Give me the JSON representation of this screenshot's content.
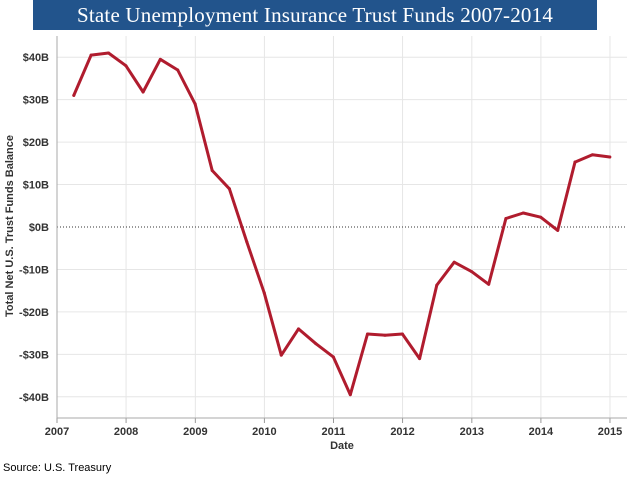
{
  "chart_data": {
    "type": "line",
    "title": "State Unemployment Insurance Trust Funds 2007-2014",
    "xlabel": "Date",
    "ylabel": "Total Net U.S. Trust Funds Balance",
    "source": "Source: U.S. Treasury",
    "xlim": [
      "2007-01-01",
      "2015-04-01"
    ],
    "ylim": [
      -45,
      45
    ],
    "y_ticks": [
      {
        "value": 40,
        "label": "$40B"
      },
      {
        "value": 30,
        "label": "$30B"
      },
      {
        "value": 20,
        "label": "$20B"
      },
      {
        "value": 10,
        "label": "$10B"
      },
      {
        "value": 0,
        "label": "$0B"
      },
      {
        "value": -10,
        "label": "-$10B"
      },
      {
        "value": -20,
        "label": "-$20B"
      },
      {
        "value": -30,
        "label": "-$30B"
      },
      {
        "value": -40,
        "label": "-$40B"
      }
    ],
    "x_ticks": [
      {
        "value": "2007-01-01",
        "label": "2007"
      },
      {
        "value": "2008-01-01",
        "label": "2008"
      },
      {
        "value": "2009-01-01",
        "label": "2009"
      },
      {
        "value": "2010-01-01",
        "label": "2010"
      },
      {
        "value": "2011-01-01",
        "label": "2011"
      },
      {
        "value": "2012-01-01",
        "label": "2012"
      },
      {
        "value": "2013-01-01",
        "label": "2013"
      },
      {
        "value": "2014-01-01",
        "label": "2014"
      },
      {
        "value": "2015-01-01",
        "label": "2015"
      }
    ],
    "grid": true,
    "zero_line": "dotted",
    "line_color": "#b01c2e",
    "series": [
      {
        "x": [
          "2007-03-31",
          "2007-06-30",
          "2007-09-30",
          "2007-12-31",
          "2008-03-31",
          "2008-06-30",
          "2008-09-30",
          "2008-12-31",
          "2009-03-31",
          "2009-06-30",
          "2009-09-30",
          "2009-12-31",
          "2010-03-31",
          "2010-06-30",
          "2010-09-30",
          "2010-12-31",
          "2011-03-31",
          "2011-06-30",
          "2011-09-30",
          "2011-12-31",
          "2012-03-31",
          "2012-06-30",
          "2012-09-30",
          "2012-12-31",
          "2013-03-31",
          "2013-06-30",
          "2013-09-30",
          "2013-12-31",
          "2014-03-31",
          "2014-06-30",
          "2014-09-30",
          "2014-12-31"
        ],
        "values": [
          31,
          40.5,
          41,
          38,
          31.8,
          39.5,
          37,
          29,
          13.3,
          9,
          -3.5,
          -15.5,
          -30.2,
          -24,
          -27.5,
          -30.6,
          -39.5,
          -25.2,
          -25.5,
          -25.2,
          -31,
          -13.7,
          -8.3,
          -10.5,
          -13.5,
          2,
          3.3,
          2.3,
          -0.8,
          15.3,
          17,
          16.5
        ]
      }
    ]
  }
}
